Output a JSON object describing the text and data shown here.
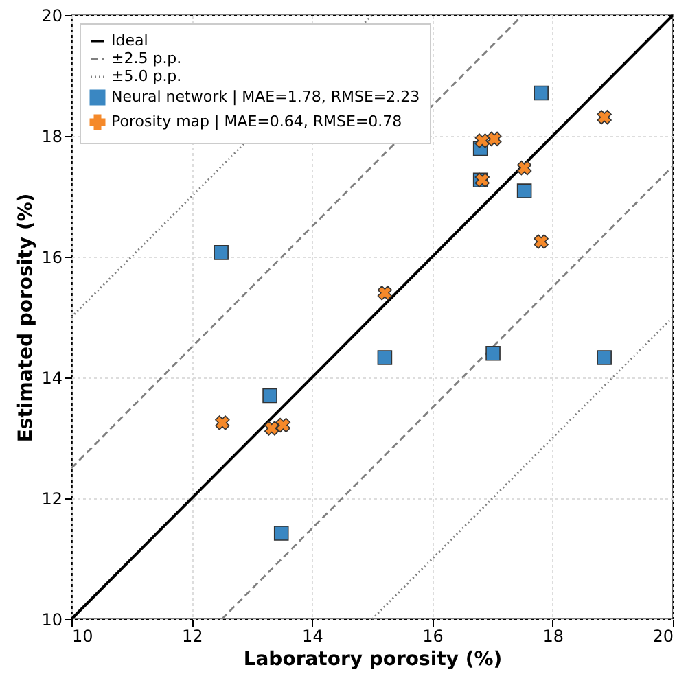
{
  "chart_data": {
    "type": "scatter",
    "xlabel": "Laboratory porosity (%)",
    "ylabel": "Estimated porosity (%)",
    "xlim": [
      10,
      20
    ],
    "ylim": [
      10,
      20
    ],
    "xticks": [
      10,
      12,
      14,
      16,
      18,
      20
    ],
    "yticks": [
      10,
      12,
      14,
      16,
      18,
      20
    ],
    "grid": true,
    "legend": "top left",
    "series": [
      {
        "name": "Ideal",
        "type": "line",
        "line_style": "solid",
        "color": "#000000",
        "x": [
          10,
          20
        ],
        "values": [
          10,
          20
        ]
      },
      {
        "name": "±2.5 p.p.",
        "type": "line",
        "line_style": "dashed",
        "color": "#808080",
        "x": [
          10,
          17.5
        ],
        "values": [
          12.5,
          20
        ]
      },
      {
        "type": "line",
        "line_style": "dashed",
        "color": "#808080",
        "x": [
          12.5,
          20
        ],
        "values": [
          10,
          17.5
        ]
      },
      {
        "name": "±5.0 p.p.",
        "type": "line",
        "line_style": "dotted",
        "color": "#808080",
        "x": [
          10,
          15
        ],
        "values": [
          15,
          20
        ]
      },
      {
        "type": "line",
        "line_style": "dotted",
        "color": "#808080",
        "x": [
          15,
          20
        ],
        "values": [
          10,
          15
        ]
      },
      {
        "name": "Neural network | MAE=1.78, RMSE=2.23",
        "marker": "square",
        "color": "#3a87c2",
        "x": [
          12.49,
          13.3,
          13.49,
          15.21,
          16.8,
          16.8,
          17.01,
          17.53,
          17.81,
          18.86
        ],
        "values": [
          16.07,
          13.7,
          11.42,
          14.33,
          17.79,
          17.27,
          14.4,
          17.09,
          18.71,
          14.33
        ]
      },
      {
        "name": "Porosity map | MAE=0.64, RMSE=0.78",
        "marker": "cross",
        "color": "#f5892a",
        "x": [
          12.51,
          13.33,
          13.52,
          15.21,
          16.83,
          17.03,
          16.83,
          17.53,
          17.81,
          18.86
        ],
        "values": [
          13.25,
          13.16,
          13.21,
          15.4,
          17.92,
          17.95,
          17.27,
          17.47,
          16.25,
          18.31
        ]
      }
    ]
  }
}
